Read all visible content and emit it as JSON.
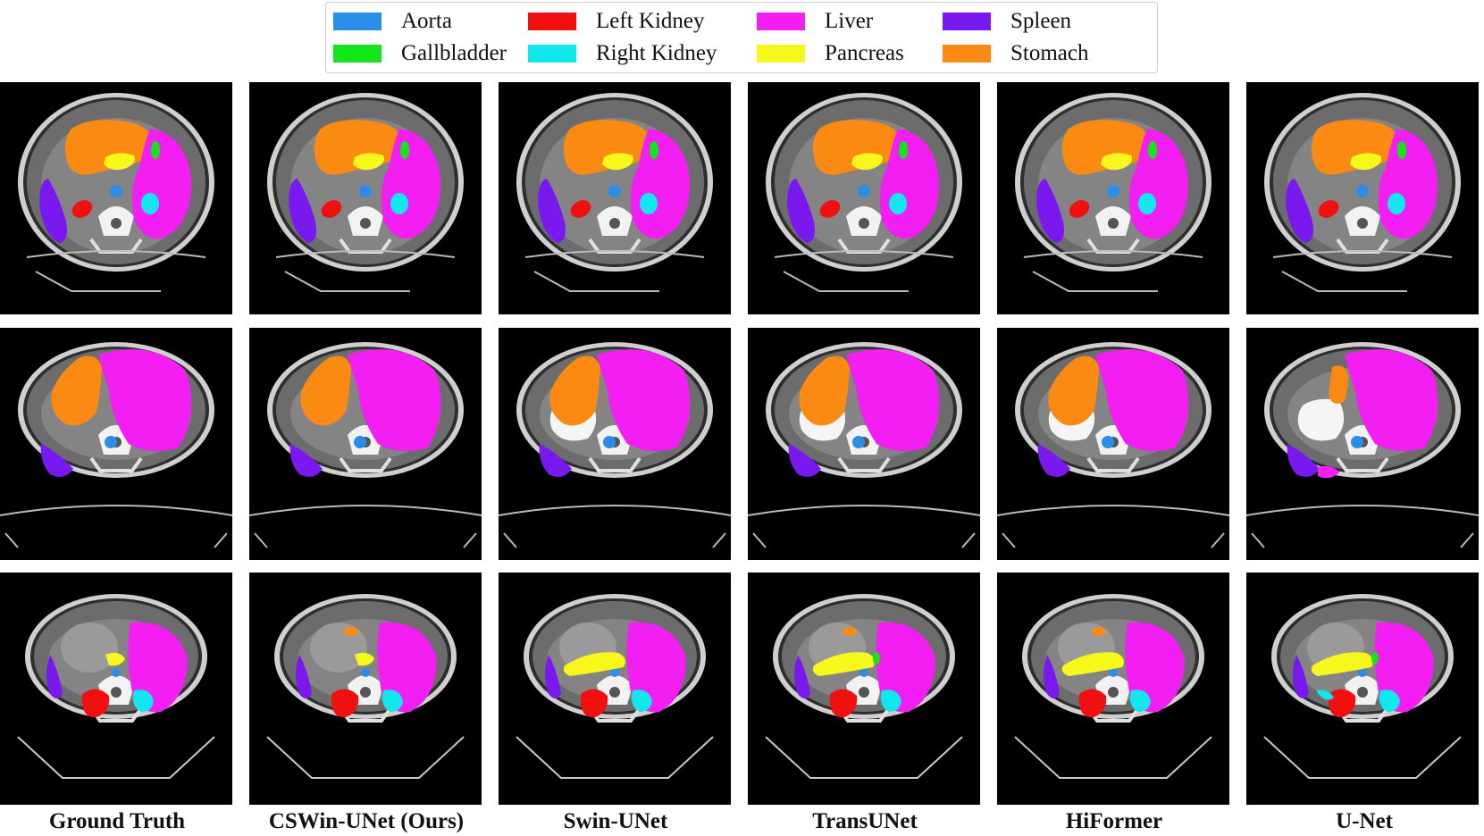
{
  "legend": {
    "items": [
      {
        "label": "Aorta",
        "color": "#2a8ee8"
      },
      {
        "label": "Gallbladder",
        "color": "#14e41a"
      },
      {
        "label": "Left Kidney",
        "color": "#f01010"
      },
      {
        "label": "Right Kidney",
        "color": "#10e8ee"
      },
      {
        "label": "Liver",
        "color": "#f21ef2"
      },
      {
        "label": "Pancreas",
        "color": "#f7f71c"
      },
      {
        "label": "Spleen",
        "color": "#7a18f0"
      },
      {
        "label": "Stomach",
        "color": "#fb8a12"
      }
    ]
  },
  "captions": [
    "Ground Truth",
    "CSWin-UNet (Ours)",
    "Swin-UNet",
    "TransUNet",
    "HiFormer",
    "U-Net"
  ],
  "panels": {
    "rows": 3,
    "columns": 6,
    "content": "axial abdominal CT slice with organ segmentation overlay"
  }
}
